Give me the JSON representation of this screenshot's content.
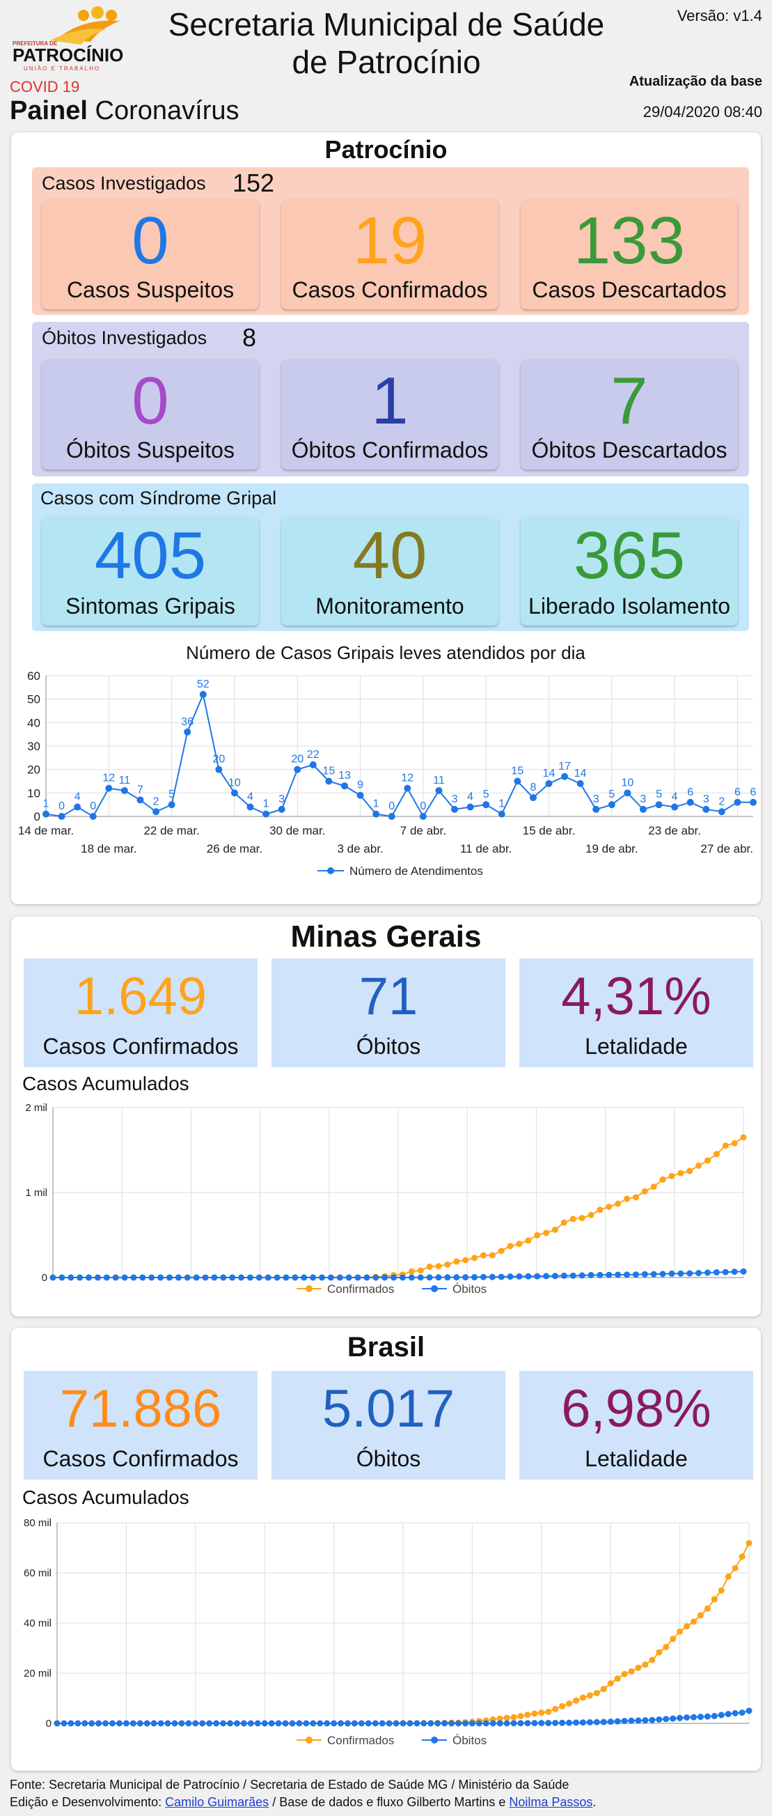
{
  "header": {
    "logo_text": "PATROCÍNIO",
    "logo_small_top": "PREFEITURA DE",
    "logo_small_bottom": "UNIÃO E TRABALHO",
    "title_line1": "Secretaria Municipal de Saúde",
    "title_line2": "de Patrocínio",
    "version": "Versão: v1.4",
    "covid": "COVID 19",
    "painel_bold": "Painel",
    "painel_rest": "Coronavírus",
    "update_label": "Atualização da base",
    "update_date": "29/04/2020 08:40"
  },
  "patrocinio": {
    "title": "Patrocínio",
    "investigados": {
      "label": "Casos Investigados",
      "value": "152",
      "cards": [
        {
          "value": "0",
          "label": "Casos Suspeitos",
          "color": "#1f77e6"
        },
        {
          "value": "19",
          "label": "Casos Confirmados",
          "color": "#ffa31a"
        },
        {
          "value": "133",
          "label": "Casos Descartados",
          "color": "#3a9a3a"
        }
      ]
    },
    "obitos": {
      "label": "Óbitos Investigados",
      "value": "8",
      "cards": [
        {
          "value": "0",
          "label": "Óbitos Suspeitos",
          "color": "#a64ac9"
        },
        {
          "value": "1",
          "label": "Óbitos Confirmados",
          "color": "#2c3fa8"
        },
        {
          "value": "7",
          "label": "Óbitos Descartados",
          "color": "#3a9a3a"
        }
      ]
    },
    "gripal": {
      "label": "Casos com Síndrome Gripal",
      "cards": [
        {
          "value": "405",
          "label": "Sintomas Gripais",
          "color": "#1f77e6"
        },
        {
          "value": "40",
          "label": "Monitoramento",
          "color": "#857a22"
        },
        {
          "value": "365",
          "label": "Liberado Isolamento",
          "color": "#3a9a3a"
        }
      ]
    }
  },
  "minas": {
    "title": "Minas Gerais",
    "cards": [
      {
        "value": "1.649",
        "label": "Casos Confirmados",
        "color": "#ffa31a"
      },
      {
        "value": "71",
        "label": "Óbitos",
        "color": "#2060c0"
      },
      {
        "value": "4,31%",
        "label": "Letalidade",
        "color": "#8a1a5a"
      }
    ],
    "chart_title": "Casos Acumulados"
  },
  "brasil": {
    "title": "Brasil",
    "cards": [
      {
        "value": "71.886",
        "label": "Casos Confirmados",
        "color": "#ff8c1a"
      },
      {
        "value": "5.017",
        "label": "Óbitos",
        "color": "#2060c0"
      },
      {
        "value": "6,98%",
        "label": "Letalidade",
        "color": "#8a1a5a"
      }
    ],
    "chart_title": "Casos Acumulados"
  },
  "footer": {
    "line1": "Fonte: Secretaria Municipal de Patrocínio / Secretaria de Estado de Saúde MG / Ministério da Saúde",
    "line2_a": "Edição e Desenvolvimento:",
    "link1": "Camilo Guimarães",
    "line2_b": " / Base de dados e fluxo Gilberto Martins e ",
    "link2": "Noilma Passos",
    "line2_c": "."
  },
  "chart_data": [
    {
      "type": "line",
      "title": "Número de Casos Gripais leves atendidos por dia",
      "legend": "bottom",
      "ylim": [
        0,
        60
      ],
      "yticks": [
        0,
        10,
        20,
        30,
        40,
        50,
        60
      ],
      "tick_labels_row1": [
        "14 de mar.",
        "22 de mar.",
        "30 de mar.",
        "7 de abr.",
        "15 de abr.",
        "23 de abr."
      ],
      "tick_labels_row2": [
        "18 de mar.",
        "26 de mar.",
        "3 de abr.",
        "11 de abr.",
        "19 de abr.",
        "27 de abr."
      ],
      "x_start": "2020-03-14",
      "x_end": "2020-04-28",
      "series": [
        {
          "name": "Número de Atendimentos",
          "color": "#1f77e6",
          "values": [
            1,
            0,
            4,
            0,
            12,
            11,
            7,
            2,
            5,
            36,
            52,
            20,
            10,
            4,
            1,
            3,
            20,
            22,
            15,
            13,
            9,
            1,
            0,
            12,
            0,
            11,
            3,
            4,
            5,
            1,
            15,
            8,
            14,
            17,
            14,
            3,
            5,
            10,
            3,
            5,
            4,
            6,
            3,
            2,
            6,
            6
          ]
        }
      ]
    },
    {
      "type": "line",
      "title": "Casos Acumulados",
      "region": "Minas Gerais",
      "legend": "bottom",
      "ylim": [
        0,
        2000
      ],
      "ytick_labels": [
        "0",
        "1 mil",
        "2 mil"
      ],
      "series": [
        {
          "name": "Confirmados",
          "color": "#ffa31a",
          "values": [
            0,
            0,
            0,
            0,
            0,
            0,
            0,
            0,
            0,
            0,
            0,
            0,
            0,
            0,
            0,
            0,
            0,
            0,
            0,
            0,
            0,
            0,
            0,
            0,
            0,
            0,
            0,
            0,
            0,
            0,
            0,
            0,
            0,
            0,
            1,
            2,
            7,
            15,
            29,
            35,
            72,
            83,
            128,
            133,
            153,
            189,
            205,
            231,
            261,
            262,
            314,
            370,
            397,
            435,
            498,
            525,
            563,
            647,
            689,
            700,
            736,
            797,
            832,
            869,
            926,
            945,
            1014,
            1069,
            1154,
            1194,
            1228,
            1254,
            1317,
            1377,
            1453,
            1552,
            1581,
            1649
          ]
        },
        {
          "name": "Óbitos",
          "color": "#1f77e6",
          "values": [
            0,
            0,
            0,
            0,
            0,
            0,
            0,
            0,
            0,
            0,
            0,
            0,
            0,
            0,
            0,
            0,
            0,
            0,
            0,
            0,
            0,
            0,
            0,
            0,
            0,
            0,
            0,
            0,
            0,
            0,
            0,
            0,
            0,
            0,
            0,
            0,
            0,
            0,
            0,
            0,
            0,
            1,
            1,
            2,
            2,
            3,
            3,
            4,
            6,
            7,
            8,
            11,
            13,
            14,
            15,
            17,
            18,
            22,
            22,
            25,
            29,
            30,
            31,
            33,
            34,
            35,
            39,
            40,
            42,
            46,
            47,
            49,
            53,
            57,
            61,
            64,
            68,
            71
          ]
        }
      ]
    },
    {
      "type": "line",
      "title": "Casos Acumulados",
      "region": "Brasil",
      "legend": "bottom",
      "ylim": [
        0,
        80000
      ],
      "ytick_labels": [
        "0",
        "20 mil",
        "40 mil",
        "60 mil",
        "80 mil"
      ],
      "series": [
        {
          "name": "Confirmados",
          "color": "#ffa31a",
          "values": [
            0,
            0,
            0,
            0,
            0,
            0,
            0,
            0,
            0,
            0,
            0,
            0,
            0,
            0,
            0,
            0,
            0,
            0,
            0,
            0,
            0,
            0,
            0,
            0,
            0,
            0,
            0,
            0,
            0,
            0,
            0,
            0,
            0,
            0,
            0,
            0,
            0,
            0,
            0,
            0,
            0,
            0,
            0,
            0,
            2,
            4,
            8,
            13,
            19,
            25,
            34,
            52,
            77,
            98,
            121,
            151,
            200,
            234,
            291,
            428,
            621,
            904,
            1128,
            1546,
            1891,
            2201,
            2433,
            2915,
            3417,
            3904,
            4256,
            4579,
            5717,
            6836,
            7910,
            9056,
            10278,
            11130,
            12056,
            13717,
            15927,
            17857,
            19638,
            20727,
            22169,
            23430,
            25262,
            28320,
            30425,
            33682,
            36599,
            38654,
            40581,
            43079,
            45757,
            49492,
            52995,
            58509,
            61888,
            66501,
            71886
          ]
        },
        {
          "name": "Óbitos",
          "color": "#1f77e6",
          "values": [
            0,
            0,
            0,
            0,
            0,
            0,
            0,
            0,
            0,
            0,
            0,
            0,
            0,
            0,
            0,
            0,
            0,
            0,
            0,
            0,
            0,
            0,
            0,
            0,
            0,
            0,
            0,
            0,
            0,
            0,
            0,
            0,
            0,
            0,
            0,
            0,
            0,
            0,
            0,
            0,
            0,
            0,
            0,
            0,
            0,
            0,
            0,
            0,
            0,
            0,
            0,
            0,
            0,
            0,
            0,
            0,
            0,
            0,
            0,
            1,
            3,
            6,
            11,
            18,
            25,
            34,
            46,
            57,
            77,
            92,
            114,
            136,
            159,
            201,
            240,
            299,
            359,
            432,
            486,
            553,
            667,
            800,
            941,
            1056,
            1124,
            1223,
            1328,
            1532,
            1736,
            1924,
            2141,
            2354,
            2462,
            2587,
            2741,
            2906,
            3331,
            3704,
            4045,
            4271,
            5017
          ]
        }
      ]
    }
  ]
}
